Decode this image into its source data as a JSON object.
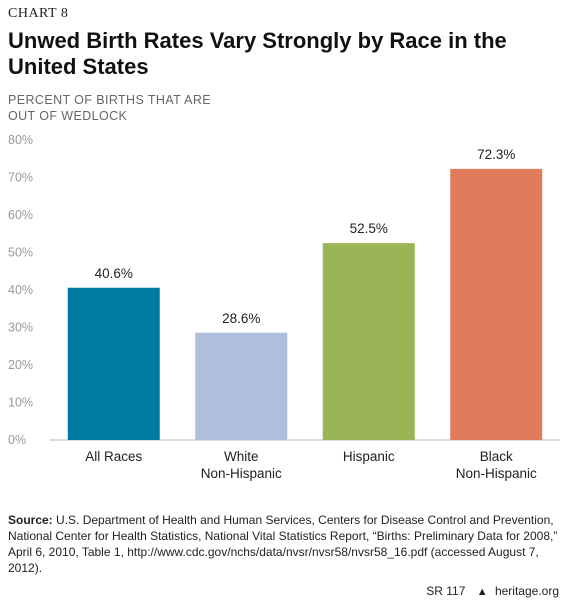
{
  "chart_label": "CHART 8",
  "chart_data": {
    "type": "bar",
    "title": "Unwed Birth Rates Vary Strongly by Race in the United States",
    "ylabel": "PERCENT OF BIRTHS THAT ARE OUT OF WEDLOCK",
    "xlabel": "",
    "categories": [
      [
        "All Races"
      ],
      [
        "White",
        "Non-Hispanic"
      ],
      [
        "Hispanic"
      ],
      [
        "Black",
        "Non-Hispanic"
      ]
    ],
    "values": [
      40.6,
      28.6,
      52.5,
      72.3
    ],
    "value_labels": [
      "40.6%",
      "28.6%",
      "52.5%",
      "72.3%"
    ],
    "colors": [
      "#0079a0",
      "#adbfdd",
      "#9ab456",
      "#e07b5c"
    ],
    "ylim": [
      0,
      80
    ],
    "yticks": [
      0,
      10,
      20,
      30,
      40,
      50,
      60,
      70,
      80
    ],
    "ytick_labels": [
      "0%",
      "10%",
      "20%",
      "30%",
      "40%",
      "50%",
      "60%",
      "70%",
      "80%"
    ],
    "grid": false
  },
  "source": {
    "label": "Source:",
    "text": "U.S. Department of Health and Human Services, Centers for Disease Control and Prevention, National Center for Health Statistics, National Vital Statistics Report, “Births: Preliminary Data for 2008,” April 6, 2010, Table 1, http://www.cdc.gov/nchs/data/nvsr/nvsr58/nvsr58_16.pdf (accessed August 7, 2012)."
  },
  "footer": {
    "report_id": "SR 117",
    "site": "heritage.org"
  }
}
